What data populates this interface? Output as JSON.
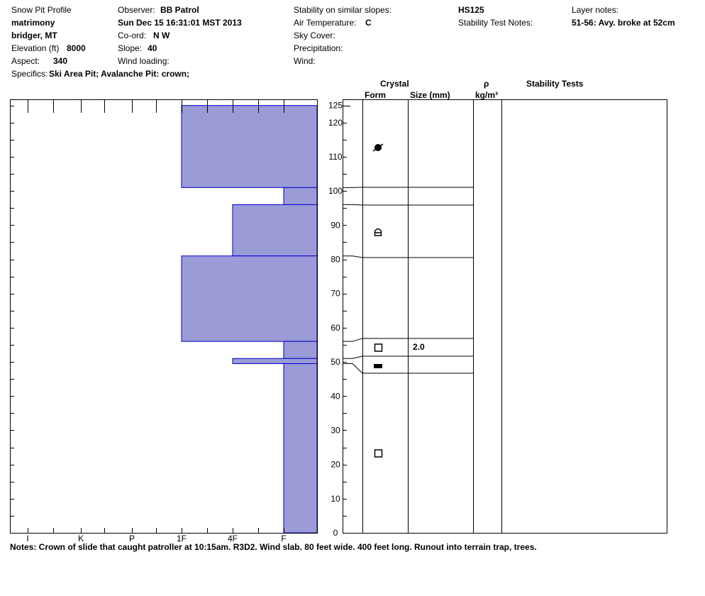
{
  "header": {
    "title": "Snow Pit Profile",
    "location": "matrimony",
    "region": "bridger, MT",
    "elevation_label": "Elevation (ft)",
    "elevation_value": "8000",
    "aspect_label": "Aspect:",
    "aspect_value": "340",
    "specifics_label": "Specifics:",
    "specifics_value": "Ski Area Pit; Avalanche Pit: crown;",
    "observer_label": "Observer:",
    "observer_value": "BB Patrol",
    "datetime": "Sun Dec 15 16:31:01 MST 2013",
    "coord_label": "Co-ord:",
    "coord_value": "N  W",
    "slope_label": "Slope:",
    "slope_value": "40",
    "wind_loading_label": "Wind loading:",
    "stability_similar_label": "Stability on similar slopes:",
    "air_temp_label": "Air Temperature:",
    "air_temp_value": "C",
    "sky_cover_label": "Sky Cover:",
    "precip_label": "Precipitation:",
    "wind_label": "Wind:",
    "hs": "HS125",
    "stability_notes_label": "Stability Test Notes:",
    "layer_notes_label": "Layer notes:",
    "layer_notes_value": "51-56: Avy. broke at 52cm"
  },
  "columns": {
    "crystal": "Crystal",
    "form": "Form",
    "size": "Size (mm)",
    "rho": "ρ",
    "density_unit": "kg/m³",
    "stability_tests": "Stability Tests"
  },
  "notes": "Notes:  Crown of slide that caught patroller at 10:15am. R3D2. Wind slab. 80 feet wide. 400 feet long. Runout into terrain trap, trees.",
  "chart_data": {
    "type": "bar",
    "title": "Snow Pit Profile",
    "xlabel": "",
    "ylabel": "",
    "hardness_scale": [
      "I",
      "K",
      "P",
      "1F",
      "4F",
      "F"
    ],
    "ylim": [
      0,
      125
    ],
    "yticks": [
      0,
      10,
      20,
      30,
      40,
      50,
      60,
      70,
      80,
      90,
      100,
      110,
      120,
      125
    ],
    "layers": [
      {
        "bottom": 101,
        "top": 125,
        "hardness": "1F",
        "form": "graupel"
      },
      {
        "bottom": 96,
        "top": 101,
        "hardness": "F"
      },
      {
        "bottom": 81,
        "top": 96,
        "hardness": "4F",
        "form": "depth-hoar"
      },
      {
        "bottom": 56,
        "top": 81,
        "hardness": "1F"
      },
      {
        "bottom": 51,
        "top": 56,
        "hardness": "F",
        "form": "faceted",
        "size": "2.0"
      },
      {
        "bottom": 49.5,
        "top": 51,
        "hardness": "4F",
        "form": "ice-layer"
      },
      {
        "bottom": 0,
        "top": 49.5,
        "hardness": "F",
        "form": "faceted"
      }
    ],
    "colors": {
      "fill": "#9b9bd7",
      "edge": "#0000cc"
    }
  }
}
